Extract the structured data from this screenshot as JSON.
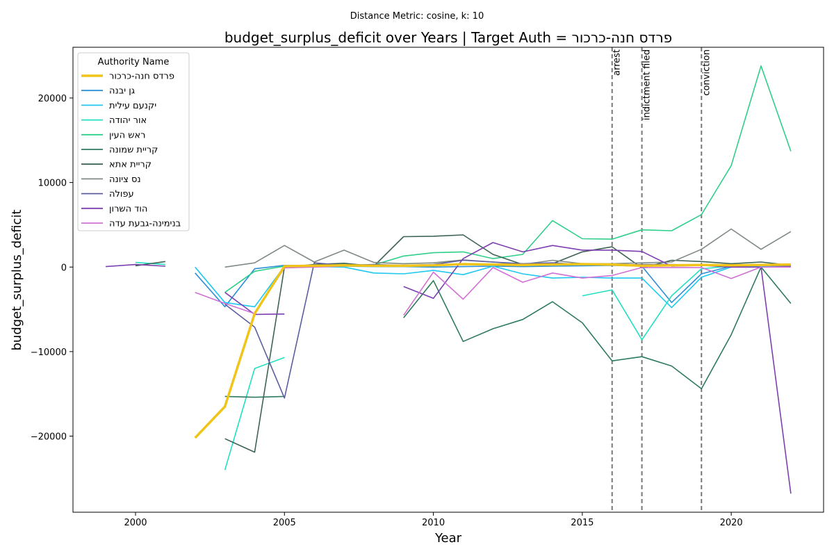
{
  "chart_data": {
    "type": "line",
    "suptitle": "Distance Metric: cosine, k: 10",
    "title": "budget_surplus_deficit over Years | Target Auth = פרדס חנה-כרכור",
    "xlabel": "Year",
    "ylabel": "budget_surplus_deficit",
    "xlim": [
      1997.9,
      2023.1
    ],
    "ylim": [
      -29000,
      26000
    ],
    "xticks": [
      2000,
      2005,
      2010,
      2015,
      2020
    ],
    "yticks": [
      -20000,
      -10000,
      0,
      10000,
      20000
    ],
    "grid": false,
    "legend": {
      "title": "Authority Name",
      "placement": "top-left"
    },
    "vlines": [
      {
        "x": 2016,
        "label": "arrest"
      },
      {
        "x": 2017,
        "label": "indictment filed"
      },
      {
        "x": 2019,
        "label": "conviction"
      }
    ],
    "series": [
      {
        "name": "פרדס חנה-כרכור",
        "color": "#f0c419",
        "width": 3.5,
        "points": [
          [
            2002,
            -20200
          ],
          [
            2003,
            -16500
          ],
          [
            2004,
            -5500
          ],
          [
            2005,
            100
          ],
          [
            2006,
            150
          ],
          [
            2007,
            200
          ],
          [
            2008,
            150
          ],
          [
            2009,
            150
          ],
          [
            2010,
            200
          ],
          [
            2011,
            350
          ],
          [
            2012,
            300
          ],
          [
            2013,
            250
          ],
          [
            2014,
            300
          ],
          [
            2015,
            350
          ],
          [
            2016,
            300
          ],
          [
            2017,
            150
          ],
          [
            2018,
            200
          ],
          [
            2019,
            250
          ],
          [
            2020,
            200
          ],
          [
            2021,
            250
          ],
          [
            2022,
            300
          ]
        ]
      },
      {
        "name": "גן יבנה",
        "color": "#2b8fd6",
        "width": 1.6,
        "points": [
          [
            2002,
            -700
          ],
          [
            2003,
            -4700
          ],
          [
            2004,
            -200
          ],
          [
            2005,
            200
          ],
          [
            2006,
            150
          ],
          [
            2007,
            100
          ],
          [
            2008,
            50
          ],
          [
            2009,
            50
          ],
          [
            2010,
            0
          ],
          [
            2011,
            50
          ],
          [
            2012,
            100
          ],
          [
            2013,
            50
          ],
          [
            2014,
            100
          ],
          [
            2015,
            150
          ],
          [
            2016,
            200
          ],
          [
            2017,
            100
          ],
          [
            2018,
            -4200
          ],
          [
            2019,
            -800
          ],
          [
            2020,
            100
          ],
          [
            2021,
            200
          ],
          [
            2022,
            150
          ]
        ]
      },
      {
        "name": "יקנעם עילית",
        "color": "#1fc8f0",
        "width": 1.6,
        "points": [
          [
            2002,
            0
          ],
          [
            2003,
            -4200
          ],
          [
            2004,
            -4700
          ],
          [
            2005,
            100
          ],
          [
            2006,
            50
          ],
          [
            2007,
            0
          ],
          [
            2008,
            -700
          ],
          [
            2009,
            -800
          ],
          [
            2010,
            -400
          ],
          [
            2011,
            -900
          ],
          [
            2012,
            100
          ],
          [
            2013,
            -800
          ],
          [
            2014,
            -1300
          ],
          [
            2015,
            -1200
          ],
          [
            2016,
            -1300
          ],
          [
            2017,
            -1300
          ],
          [
            2018,
            -4800
          ],
          [
            2019,
            -1200
          ],
          [
            2020,
            0
          ],
          [
            2021,
            100
          ],
          [
            2022,
            100
          ]
        ]
      },
      {
        "name": "אור יהודה",
        "color": "#1fe0c0",
        "width": 1.6,
        "points": [
          [
            2000,
            550
          ],
          [
            2001,
            300
          ],
          null,
          [
            2003,
            -24000
          ],
          [
            2004,
            -12000
          ],
          [
            2005,
            -10700
          ],
          null,
          [
            2015,
            -3400
          ],
          [
            2016,
            -2700
          ],
          [
            2017,
            -8600
          ],
          [
            2018,
            -3400
          ],
          [
            2019,
            -200
          ],
          [
            2020,
            100
          ],
          [
            2021,
            200
          ],
          [
            2022,
            100
          ]
        ]
      },
      {
        "name": "ראש העין",
        "color": "#2ecf8a",
        "width": 1.6,
        "points": [
          [
            2003,
            -3000
          ],
          [
            2004,
            -500
          ],
          [
            2005,
            100
          ],
          [
            2006,
            200
          ],
          [
            2007,
            300
          ],
          [
            2008,
            250
          ],
          [
            2009,
            1300
          ],
          [
            2010,
            1700
          ],
          [
            2011,
            1800
          ],
          [
            2012,
            1000
          ],
          [
            2013,
            1500
          ],
          [
            2014,
            5500
          ],
          [
            2015,
            3350
          ],
          [
            2016,
            3300
          ],
          [
            2017,
            4400
          ],
          [
            2018,
            4300
          ],
          [
            2019,
            6200
          ],
          [
            2020,
            12000
          ],
          [
            2021,
            23800
          ],
          [
            2022,
            13700
          ]
        ]
      },
      {
        "name": "קריית שמונה",
        "color": "#2e7a5e",
        "width": 1.6,
        "points": [
          [
            2003,
            -15300
          ],
          [
            2004,
            -15400
          ],
          [
            2005,
            -15300
          ],
          null,
          [
            2009,
            -6000
          ],
          [
            2010,
            -1600
          ],
          [
            2011,
            -8800
          ],
          [
            2012,
            -7300
          ],
          [
            2013,
            -6200
          ],
          [
            2014,
            -4100
          ],
          [
            2015,
            -6600
          ],
          [
            2016,
            -11100
          ],
          [
            2017,
            -10600
          ],
          [
            2018,
            -11700
          ],
          [
            2019,
            -14400
          ],
          [
            2020,
            -8000
          ],
          [
            2021,
            0
          ],
          [
            2022,
            -4300
          ]
        ]
      },
      {
        "name": "קריית אתא",
        "color": "#3d6355",
        "width": 1.6,
        "points": [
          [
            2000,
            150
          ],
          [
            2001,
            650
          ],
          null,
          [
            2003,
            -20300
          ],
          [
            2004,
            -21900
          ],
          [
            2005,
            0
          ],
          [
            2006,
            300
          ],
          [
            2007,
            450
          ],
          [
            2008,
            100
          ],
          [
            2009,
            3600
          ],
          [
            2010,
            3650
          ],
          [
            2011,
            3800
          ],
          [
            2012,
            1500
          ],
          [
            2013,
            300
          ],
          [
            2014,
            400
          ],
          [
            2015,
            1800
          ],
          [
            2016,
            2400
          ],
          [
            2017,
            -100
          ],
          [
            2018,
            800
          ],
          [
            2019,
            650
          ],
          [
            2020,
            400
          ],
          [
            2021,
            600
          ],
          [
            2022,
            200
          ]
        ]
      },
      {
        "name": "נס ציונה",
        "color": "#808a85",
        "width": 1.6,
        "points": [
          [
            2003,
            0
          ],
          [
            2004,
            500
          ],
          [
            2005,
            2550
          ],
          [
            2006,
            600
          ],
          [
            2007,
            2000
          ],
          [
            2008,
            550
          ],
          [
            2009,
            400
          ],
          [
            2010,
            500
          ],
          [
            2011,
            850
          ],
          [
            2012,
            600
          ],
          [
            2013,
            300
          ],
          [
            2014,
            800
          ],
          [
            2015,
            400
          ],
          [
            2016,
            400
          ],
          [
            2017,
            500
          ],
          [
            2018,
            600
          ],
          [
            2019,
            2100
          ],
          [
            2020,
            4500
          ],
          [
            2021,
            2100
          ],
          [
            2022,
            4200
          ]
        ]
      },
      {
        "name": "עפולה",
        "color": "#5c5e9e",
        "width": 1.6,
        "points": [
          [
            2003,
            -4400
          ],
          [
            2004,
            -7100
          ],
          [
            2005,
            -15500
          ],
          [
            2006,
            500
          ],
          [
            2007,
            200
          ],
          [
            2008,
            300
          ],
          [
            2009,
            200
          ],
          [
            2010,
            300
          ],
          [
            2011,
            800
          ],
          [
            2012,
            600
          ],
          [
            2013,
            400
          ],
          [
            2014,
            500
          ],
          [
            2015,
            300
          ],
          [
            2016,
            200
          ],
          [
            2017,
            300
          ],
          [
            2018,
            300
          ],
          [
            2019,
            200
          ],
          [
            2020,
            100
          ],
          [
            2021,
            200
          ],
          [
            2022,
            100
          ]
        ]
      },
      {
        "name": "הוד השרון",
        "color": "#7d3fb0",
        "width": 1.6,
        "points": [
          [
            1999,
            50
          ],
          [
            2000,
            300
          ],
          [
            2001,
            100
          ],
          null,
          [
            2003,
            -3000
          ],
          [
            2004,
            -5600
          ],
          [
            2005,
            -5550
          ],
          null,
          [
            2009,
            -2300
          ],
          [
            2010,
            -3700
          ],
          [
            2011,
            1000
          ],
          [
            2012,
            2900
          ],
          [
            2013,
            1800
          ],
          [
            2014,
            2550
          ],
          [
            2015,
            2000
          ],
          [
            2016,
            2000
          ],
          [
            2017,
            1850
          ],
          [
            2018,
            100
          ],
          [
            2019,
            200
          ],
          [
            2020,
            0
          ],
          [
            2021,
            0
          ],
          [
            2022,
            -26800
          ]
        ]
      },
      {
        "name": "בנימינה-גבעת עדה",
        "color": "#d070d4",
        "width": 1.6,
        "points": [
          [
            2002,
            -3000
          ],
          [
            2003,
            -4300
          ],
          [
            2004,
            -5500
          ],
          [
            2005,
            -100
          ],
          [
            2006,
            0
          ],
          [
            2007,
            100
          ],
          null,
          [
            2009,
            -5700
          ],
          [
            2010,
            -600
          ],
          [
            2011,
            -3800
          ],
          [
            2012,
            -50
          ],
          [
            2013,
            -1800
          ],
          [
            2014,
            -700
          ],
          [
            2015,
            -1300
          ],
          [
            2016,
            -1000
          ],
          [
            2017,
            -50
          ],
          [
            2018,
            -50
          ],
          [
            2019,
            -50
          ],
          [
            2020,
            -1350
          ],
          [
            2021,
            0
          ],
          [
            2022,
            0
          ]
        ]
      }
    ]
  }
}
